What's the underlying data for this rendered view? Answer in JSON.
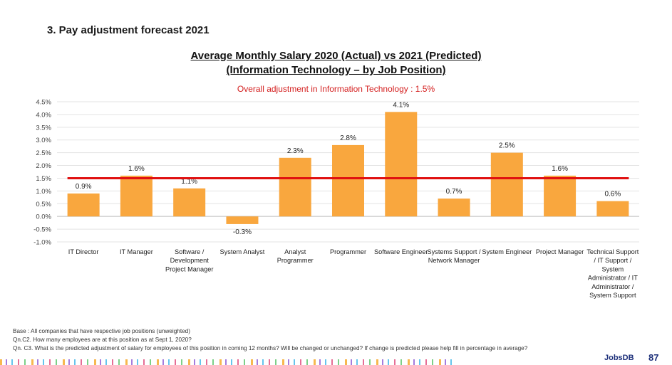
{
  "section_title": "3. Pay adjustment forecast 2021",
  "footnotes": [
    "Base : All companies that have respective job positions (unweighted)",
    "Qn.C2. How many employees are at this position as at Sept 1, 2020?",
    "Qn. C3. What is the predicted adjustment of salary for employees of this position in coming 12 months? Will be changed or unchanged?  If change is predicted please help fill in percentage in average?"
  ],
  "logo_text": "JobsDB",
  "page_number": "87",
  "chart_data": {
    "type": "bar",
    "title_line1": "Average Monthly Salary 2020 (Actual) vs 2021 (Predicted)",
    "title_line2": "(Information Technology – by Job Position)",
    "subtitle": "Overall adjustment in Information Technology  : 1.5%",
    "xlabel": "",
    "ylabel": "",
    "ylim": [
      -1.0,
      4.5
    ],
    "yticks": [
      -1.0,
      -0.5,
      0.0,
      0.5,
      1.0,
      1.5,
      2.0,
      2.5,
      3.0,
      3.5,
      4.0,
      4.5
    ],
    "ytick_labels": [
      "-1.0%",
      "-0.5%",
      "0.0%",
      "0.5%",
      "1.0%",
      "1.5%",
      "2.0%",
      "2.5%",
      "3.0%",
      "3.5%",
      "4.0%",
      "4.5%"
    ],
    "grid": true,
    "categories": [
      [
        "IT Director"
      ],
      [
        "IT Manager"
      ],
      [
        "Software /",
        "Development",
        "Project Manager"
      ],
      [
        "System Analyst"
      ],
      [
        "Analyst",
        "Programmer"
      ],
      [
        "Programmer"
      ],
      [
        "Software Engineer"
      ],
      [
        "Systems Support /",
        "Network Manager"
      ],
      [
        "System Engineer"
      ],
      [
        "Project Manager"
      ],
      [
        "Technical Support",
        "/ IT Support  /",
        "System",
        "Administrator / IT",
        "Administrator /",
        "System Support"
      ]
    ],
    "values": [
      0.9,
      1.6,
      1.1,
      -0.3,
      2.3,
      2.8,
      4.1,
      0.7,
      2.5,
      1.6,
      0.6
    ],
    "value_labels": [
      "0.9%",
      "1.6%",
      "1.1%",
      "-0.3%",
      "2.3%",
      "2.8%",
      "4.1%",
      "0.7%",
      "2.5%",
      "1.6%",
      "0.6%"
    ],
    "reference_line": {
      "value": 1.5
    },
    "bar_color": "#f9a73e",
    "reference_color": "#e01010"
  }
}
